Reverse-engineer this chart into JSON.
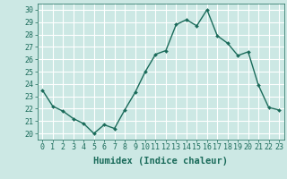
{
  "x": [
    0,
    1,
    2,
    3,
    4,
    5,
    6,
    7,
    8,
    9,
    10,
    11,
    12,
    13,
    14,
    15,
    16,
    17,
    18,
    19,
    20,
    21,
    22,
    23
  ],
  "y": [
    23.5,
    22.2,
    21.8,
    21.2,
    20.8,
    20.0,
    20.7,
    20.4,
    21.9,
    23.3,
    25.0,
    26.4,
    26.7,
    28.8,
    29.2,
    28.7,
    30.0,
    27.9,
    27.3,
    26.3,
    26.6,
    23.9,
    22.1,
    21.9
  ],
  "xlabel": "Humidex (Indice chaleur)",
  "xlim": [
    -0.5,
    23.5
  ],
  "ylim": [
    19.5,
    30.5
  ],
  "yticks": [
    20,
    21,
    22,
    23,
    24,
    25,
    26,
    27,
    28,
    29,
    30
  ],
  "xticks": [
    0,
    1,
    2,
    3,
    4,
    5,
    6,
    7,
    8,
    9,
    10,
    11,
    12,
    13,
    14,
    15,
    16,
    17,
    18,
    19,
    20,
    21,
    22,
    23
  ],
  "line_color": "#1a6b5a",
  "marker_color": "#1a6b5a",
  "bg_color": "#cce8e4",
  "grid_color": "#ffffff",
  "xlabel_fontsize": 7.5,
  "tick_fontsize": 6.0,
  "marker_size": 2.0,
  "linewidth": 1.0
}
